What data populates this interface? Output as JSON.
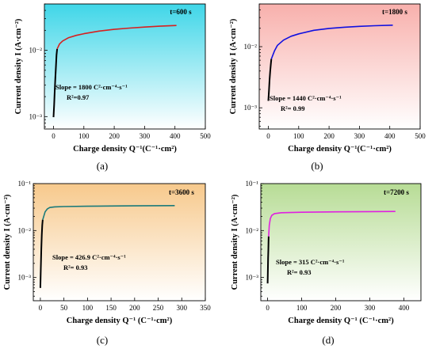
{
  "chart_data": [
    {
      "type": "line",
      "panel_label": "(a)",
      "time_label": "t=600 s",
      "xlabel": "Charge density Q⁻¹(C⁻¹·cm²)",
      "ylabel": "Current density I (A·cm⁻²)",
      "xlim": [
        -30,
        500
      ],
      "ylim": [
        0.00065,
        0.05
      ],
      "y_scale": "log",
      "x_ticks": [
        0,
        100,
        200,
        300,
        400,
        500
      ],
      "y_ticks": [
        {
          "value": 0.001,
          "label": "10⁻³"
        },
        {
          "value": 0.01,
          "label": "10⁻²"
        }
      ],
      "background": "#3fd6e8",
      "annotations": [
        "Slope = 1800 C²·cm⁻⁴·s⁻¹",
        "R²=0.97"
      ],
      "series": [
        {
          "color": "#000000",
          "x": [
            0,
            2,
            4,
            6,
            8,
            10,
            12
          ],
          "y": [
            0.00098,
            0.0015,
            0.0024,
            0.0038,
            0.0058,
            0.0085,
            0.0105
          ]
        },
        {
          "color": "#d62020",
          "x": [
            12,
            20,
            30,
            50,
            75,
            100,
            150,
            200,
            250,
            300,
            350,
            405
          ],
          "y": [
            0.0105,
            0.0125,
            0.0138,
            0.0155,
            0.0168,
            0.0178,
            0.0195,
            0.0207,
            0.0216,
            0.0224,
            0.0231,
            0.0237
          ]
        }
      ]
    },
    {
      "type": "line",
      "panel_label": "(b)",
      "time_label": "t=1800 s",
      "xlabel": "Charge density Q⁻¹(C⁻¹·cm²)",
      "ylabel": "Current density I (A·cm⁻²)",
      "xlim": [
        -30,
        500
      ],
      "ylim": [
        0.00045,
        0.05
      ],
      "y_scale": "log",
      "x_ticks": [
        0,
        100,
        200,
        300,
        400,
        500
      ],
      "y_ticks": [
        {
          "value": 0.001,
          "label": "10⁻³"
        },
        {
          "value": 0.01,
          "label": "10⁻²"
        }
      ],
      "background": "#f8b0ac",
      "annotations": [
        "Slope = 1440 C²·cm⁻⁴·s⁻¹",
        "R²= 0.99"
      ],
      "series": [
        {
          "color": "#000000",
          "x": [
            0,
            2,
            4,
            6,
            8,
            10
          ],
          "y": [
            0.0013,
            0.0019,
            0.0028,
            0.0039,
            0.0051,
            0.0063
          ]
        },
        {
          "color": "#1010e0",
          "x": [
            10,
            20,
            30,
            50,
            75,
            100,
            150,
            200,
            250,
            300,
            350,
            410
          ],
          "y": [
            0.0063,
            0.0085,
            0.0105,
            0.0128,
            0.0148,
            0.0162,
            0.0185,
            0.0199,
            0.0208,
            0.0215,
            0.022,
            0.0225
          ]
        }
      ]
    },
    {
      "type": "line",
      "panel_label": "(c)",
      "time_label": "t=3600 s",
      "xlabel": "Charge density Q⁻¹ (C⁻¹·cm²)",
      "ylabel": "Current density I (A·cm⁻²)",
      "xlim": [
        -15,
        350
      ],
      "ylim": [
        0.00032,
        0.1
      ],
      "y_scale": "log",
      "x_ticks": [
        0,
        50,
        100,
        150,
        200,
        250,
        300,
        350
      ],
      "y_ticks": [
        {
          "value": 0.001,
          "label": "10⁻³"
        },
        {
          "value": 0.01,
          "label": "10⁻²"
        },
        {
          "value": 0.1,
          "label": "10⁻¹"
        }
      ],
      "background": "#f7c98c",
      "annotations": [
        "Slope = 426.9 C²·cm⁻⁴·s⁻¹",
        "R²= 0.93"
      ],
      "series": [
        {
          "color": "#000000",
          "x": [
            0,
            1,
            2,
            3,
            4,
            5
          ],
          "y": [
            0.0006,
            0.0016,
            0.004,
            0.008,
            0.013,
            0.017
          ]
        },
        {
          "color": "#1a7a7a",
          "x": [
            5,
            10,
            15,
            20,
            30,
            50,
            100,
            150,
            200,
            285
          ],
          "y": [
            0.017,
            0.025,
            0.029,
            0.031,
            0.032,
            0.0325,
            0.033,
            0.0333,
            0.0336,
            0.034
          ]
        }
      ]
    },
    {
      "type": "line",
      "panel_label": "(d)",
      "time_label": "t=7200 s",
      "xlabel": "Charge density Q⁻¹ (C⁻¹·cm²)",
      "ylabel": "Current density I (A·cm⁻²)",
      "xlim": [
        -20,
        450
      ],
      "ylim": [
        0.00032,
        0.1
      ],
      "y_scale": "log",
      "x_ticks": [
        0,
        100,
        200,
        300,
        400
      ],
      "y_ticks": [
        {
          "value": 0.001,
          "label": "10⁻³"
        },
        {
          "value": 0.01,
          "label": "10⁻²"
        },
        {
          "value": 0.1,
          "label": "10⁻¹"
        }
      ],
      "background": "#b7dc95",
      "annotations": [
        "Slope = 315 C²·cm⁻⁴·s⁻¹",
        "R²= 0.93"
      ],
      "series": [
        {
          "color": "#000000",
          "x": [
            0,
            0.5,
            1,
            1.5,
            2,
            2.5,
            3
          ],
          "y": [
            0.00075,
            0.0011,
            0.0017,
            0.0026,
            0.0038,
            0.0055,
            0.0075
          ]
        },
        {
          "color": "#e020e0",
          "x": [
            3,
            5,
            8,
            12,
            20,
            40,
            100,
            200,
            300,
            375
          ],
          "y": [
            0.0075,
            0.013,
            0.018,
            0.021,
            0.023,
            0.024,
            0.0245,
            0.025,
            0.0253,
            0.0255
          ]
        }
      ]
    }
  ]
}
